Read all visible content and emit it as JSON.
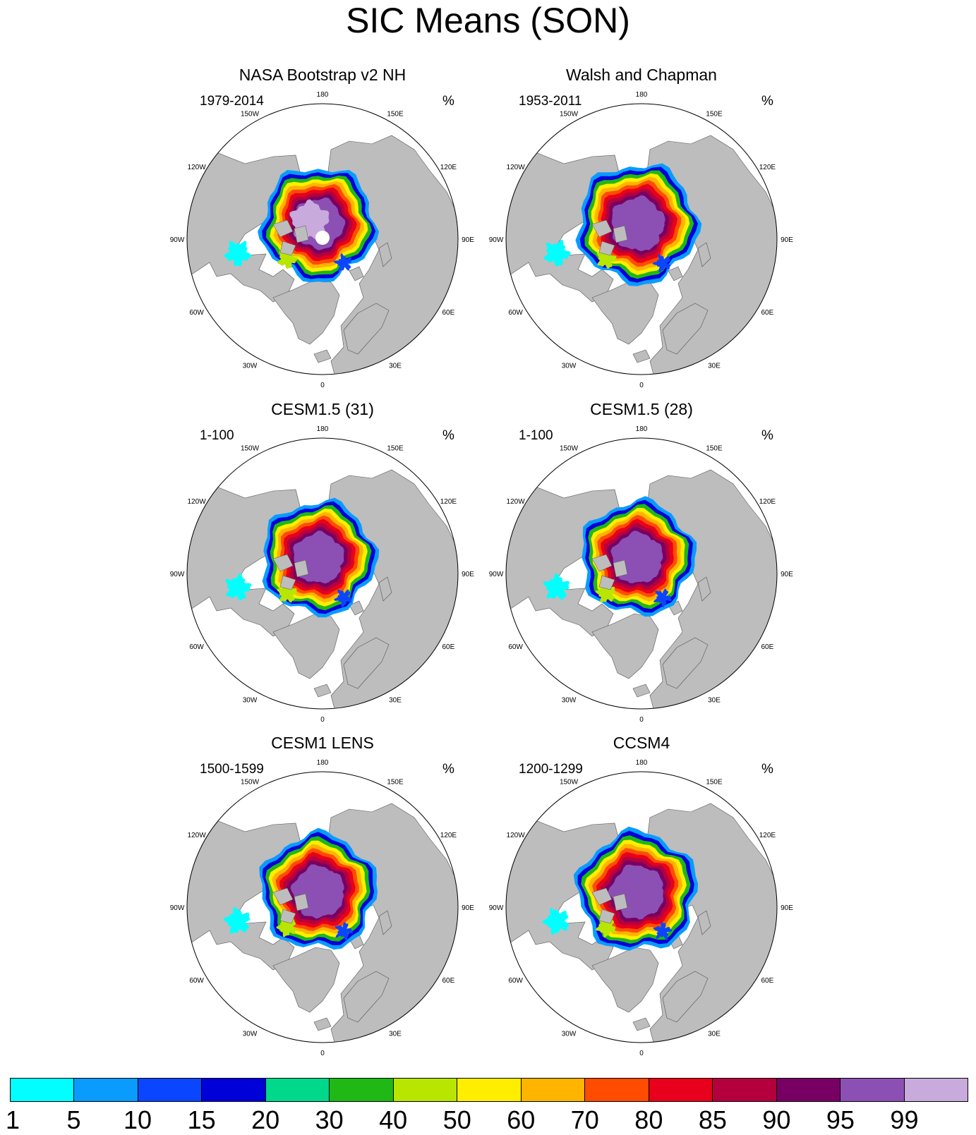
{
  "title": "SIC Means (SON)",
  "colors": {
    "land": "#bdbdbd",
    "ocean": "#ffffff",
    "pole_hole": "#ffffff",
    "outline": "#000000"
  },
  "longitude_labels": [
    "180",
    "150E",
    "120E",
    "90E",
    "60E",
    "30E",
    "0",
    "30W",
    "60W",
    "90W",
    "120W",
    "150W"
  ],
  "panels": [
    {
      "title": "NASA Bootstrap v2 NH",
      "period": "1979-2014",
      "unit": "%",
      "pole_hole": true,
      "extent": 1.0,
      "core": 0.75
    },
    {
      "title": "Walsh and Chapman",
      "period": "1953-2011",
      "unit": "%",
      "pole_hole": false,
      "extent": 1.05,
      "core": 1.0
    },
    {
      "title": "CESM1.5 (31)",
      "period": "1-100",
      "unit": "%",
      "pole_hole": false,
      "extent": 1.0,
      "core": 0.95
    },
    {
      "title": "CESM1.5 (28)",
      "period": "1-100",
      "unit": "%",
      "pole_hole": false,
      "extent": 1.0,
      "core": 0.95
    },
    {
      "title": "CESM1 LENS",
      "period": "1500-1599",
      "unit": "%",
      "pole_hole": false,
      "extent": 1.02,
      "core": 0.95
    },
    {
      "title": "CCSM4",
      "period": "1200-1299",
      "unit": "%",
      "pole_hole": false,
      "extent": 1.05,
      "core": 0.95
    }
  ],
  "colorbar": {
    "labels": [
      "1",
      "5",
      "10",
      "15",
      "20",
      "30",
      "40",
      "50",
      "60",
      "70",
      "80",
      "85",
      "90",
      "95",
      "99"
    ],
    "colors": [
      "#00ffff",
      "#0a9bff",
      "#0a46ff",
      "#0000d8",
      "#00d88c",
      "#20b814",
      "#b8e600",
      "#ffee00",
      "#ffb400",
      "#ff4c00",
      "#e8001c",
      "#b4003c",
      "#780064",
      "#8c50b4",
      "#c8aadc"
    ]
  }
}
